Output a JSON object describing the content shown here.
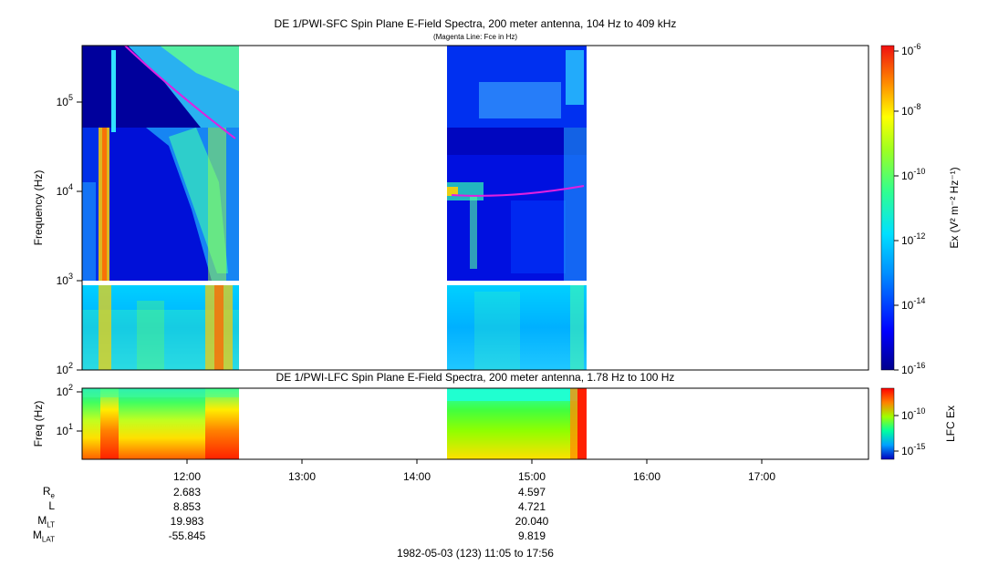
{
  "top_panel": {
    "title": "DE 1/PWI-SFC  Spin Plane E-Field Spectra, 200 meter antenna, 104 Hz to 409 kHz",
    "subtitle": "(Magenta Line: Fce in Hz)",
    "ylabel": "Frequency (Hz)",
    "y_ticks": [
      {
        "base": "10",
        "exp": "2"
      },
      {
        "base": "10",
        "exp": "3"
      },
      {
        "base": "10",
        "exp": "4"
      },
      {
        "base": "10",
        "exp": "5"
      }
    ],
    "colorbar_label": "Ex (V² m⁻² Hz⁻¹)",
    "colorbar_ticks": [
      {
        "base": "10",
        "exp": "-6"
      },
      {
        "base": "10",
        "exp": "-8"
      },
      {
        "base": "10",
        "exp": "-10"
      },
      {
        "base": "10",
        "exp": "-12"
      },
      {
        "base": "10",
        "exp": "-14"
      },
      {
        "base": "10",
        "exp": "-16"
      }
    ]
  },
  "bottom_panel": {
    "title": "DE 1/PWI-LFC  Spin Plane E-Field Spectra, 200 meter antenna, 1.78 Hz to 100 Hz",
    "ylabel": "Freq (Hz)",
    "y_ticks": [
      {
        "base": "10",
        "exp": "1"
      },
      {
        "base": "10",
        "exp": "2"
      }
    ],
    "colorbar_label": "LFC Ex",
    "colorbar_ticks": [
      {
        "base": "10",
        "exp": "-10"
      },
      {
        "base": "10",
        "exp": "-15"
      }
    ]
  },
  "x_ticks": [
    "12:00",
    "13:00",
    "14:00",
    "15:00",
    "16:00",
    "17:00"
  ],
  "ephemeris": {
    "labels": [
      {
        "main": "R",
        "sub": "e"
      },
      {
        "main": "L",
        "sub": ""
      },
      {
        "main": "M",
        "sub": "LT"
      },
      {
        "main": "M",
        "sub": "LAT"
      }
    ],
    "columns": [
      {
        "values": [
          "2.683",
          "8.853",
          "19.983",
          "-55.845"
        ]
      },
      {
        "values": [
          "4.597",
          "4.721",
          "20.040",
          "9.819"
        ]
      }
    ]
  },
  "footer": "1982-05-03 (123) 11:05 to 17:56",
  "colors": {
    "fce_line": "#e020e0",
    "background_low": "#00008c"
  },
  "chart_data": {
    "type": "heatmap",
    "title": "DE 1/PWI-SFC  Spin Plane E-Field Spectra, 200 meter antenna, 104 Hz to 409 kHz",
    "x_range": [
      "11:05",
      "17:56"
    ],
    "y_scale": "log",
    "y_range_top": [
      100,
      409000
    ],
    "y_range_bottom": [
      1.78,
      100
    ],
    "data_intervals": [
      [
        "11:05",
        "12:26"
      ],
      [
        "14:16",
        "15:28"
      ]
    ],
    "fce_line": {
      "segment_1": [
        [
          "11:15",
          400000
        ],
        [
          "11:45",
          150000
        ],
        [
          "12:25",
          40000
        ]
      ],
      "segment_2": [
        [
          "14:18",
          9000
        ],
        [
          "14:50",
          9500
        ],
        [
          "15:28",
          12000
        ]
      ]
    },
    "colorbar_range": [
      1e-16,
      1e-06
    ]
  }
}
